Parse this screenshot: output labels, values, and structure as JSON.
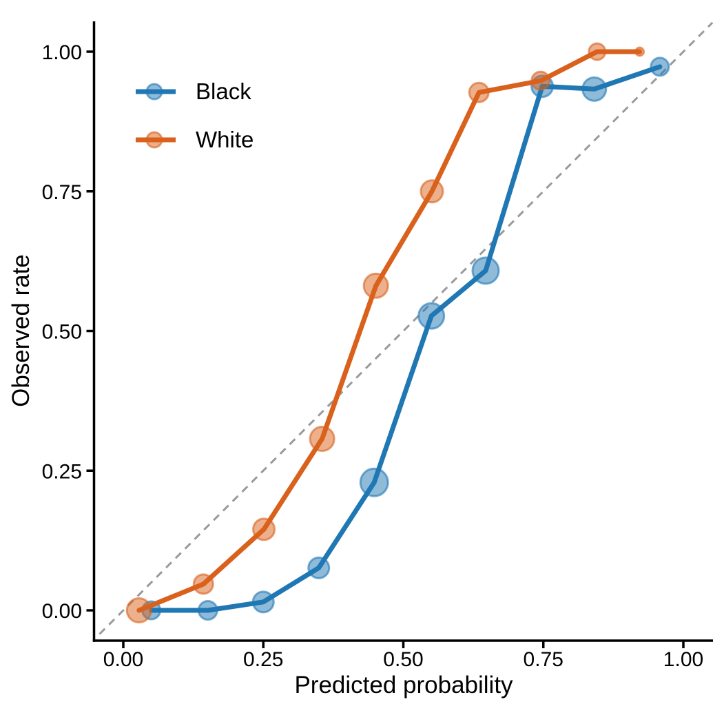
{
  "chart_data": {
    "type": "scatter",
    "title": "",
    "xlabel": "Predicted probability",
    "ylabel": "Observed rate",
    "xlim": [
      -0.045,
      1.055
    ],
    "ylim": [
      -0.055,
      1.055
    ],
    "grid": false,
    "background_color": "#ffffff",
    "axis_color": "#000000",
    "xticks": {
      "values": [
        0,
        0.25,
        0.5,
        0.75,
        1.0
      ],
      "labels": [
        "0.00",
        "0.25",
        "0.50",
        "0.75",
        "1.00"
      ]
    },
    "yticks": {
      "values": [
        0,
        0.25,
        0.5,
        0.75,
        1.0
      ],
      "labels": [
        "0.00",
        "0.25",
        "0.50",
        "0.75",
        "1.00"
      ]
    },
    "reference_line": {
      "kind": "identity",
      "style": "dashed",
      "color": "#9a9a9a",
      "from": -0.0425,
      "to": 1.052
    },
    "legend": {
      "position": "top-left",
      "entries": [
        {
          "label": "Black",
          "color": "#1f77b4"
        },
        {
          "label": "White",
          "color": "#d9611c"
        }
      ]
    },
    "series": [
      {
        "name": "Black",
        "color": "#1f77b4",
        "points": [
          {
            "x": 0.05,
            "y": 0.0,
            "r": 13
          },
          {
            "x": 0.151,
            "y": 0.0,
            "r": 13.5
          },
          {
            "x": 0.25,
            "y": 0.015,
            "r": 15
          },
          {
            "x": 0.349,
            "y": 0.076,
            "r": 15
          },
          {
            "x": 0.448,
            "y": 0.229,
            "r": 20
          },
          {
            "x": 0.55,
            "y": 0.527,
            "r": 18.5
          },
          {
            "x": 0.647,
            "y": 0.608,
            "r": 19
          },
          {
            "x": 0.748,
            "y": 0.938,
            "r": 15.5
          },
          {
            "x": 0.841,
            "y": 0.933,
            "r": 17
          },
          {
            "x": 0.958,
            "y": 0.973,
            "r": 13
          }
        ]
      },
      {
        "name": "White",
        "color": "#d9611c",
        "points": [
          {
            "x": 0.028,
            "y": 0.0,
            "r": 17.5
          },
          {
            "x": 0.143,
            "y": 0.047,
            "r": 14
          },
          {
            "x": 0.251,
            "y": 0.145,
            "r": 15.5
          },
          {
            "x": 0.355,
            "y": 0.307,
            "r": 17.5
          },
          {
            "x": 0.451,
            "y": 0.581,
            "r": 17.5
          },
          {
            "x": 0.551,
            "y": 0.75,
            "r": 16
          },
          {
            "x": 0.635,
            "y": 0.927,
            "r": 14
          },
          {
            "x": 0.745,
            "y": 0.948,
            "r": 13
          },
          {
            "x": 0.846,
            "y": 1.0,
            "r": 12
          },
          {
            "x": 0.922,
            "y": 1.0,
            "r": 6
          }
        ]
      }
    ]
  }
}
